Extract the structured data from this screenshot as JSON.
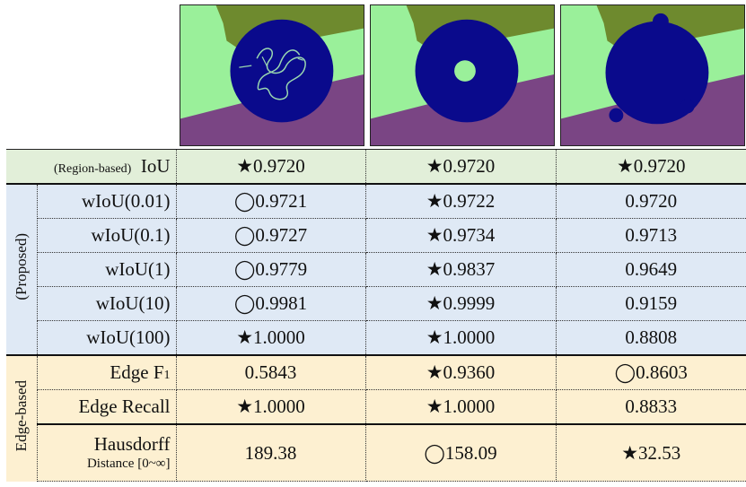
{
  "colors": {
    "region_bg": "#e2efd9",
    "proposed_bg": "#dfe9f5",
    "edge_bg": "#fdf0d1",
    "circle_blue": "#0a0a8c",
    "light_green": "#9af09a",
    "olive_green": "#6e8a2e",
    "purple": "#7a4584"
  },
  "icons": {
    "best": "star",
    "second": "circle"
  },
  "groups": {
    "region": "(Region-based)",
    "proposed": "(Proposed)",
    "edge": "Edge-based"
  },
  "rows": [
    {
      "metric": "IoU",
      "values": [
        "★0.9720",
        "★0.9720",
        "★0.9720"
      ]
    },
    {
      "metric": "wIoU(0.01)",
      "values": [
        "◯0.9721",
        "★0.9722",
        "0.9720"
      ]
    },
    {
      "metric": "wIoU(0.1)",
      "values": [
        "◯0.9727",
        "★0.9734",
        "0.9713"
      ]
    },
    {
      "metric": "wIoU(1)",
      "values": [
        "◯0.9779",
        "★0.9837",
        "0.9649"
      ]
    },
    {
      "metric": "wIoU(10)",
      "values": [
        "◯0.9981",
        "★0.9999",
        "0.9159"
      ]
    },
    {
      "metric": "wIoU(100)",
      "values": [
        "★1.0000",
        "★1.0000",
        "0.8808"
      ]
    },
    {
      "metric": "Edge F",
      "metric_sub": "1",
      "values": [
        "0.5843",
        "★0.9360",
        "◯0.8603"
      ]
    },
    {
      "metric": "Edge Recall",
      "values": [
        "★1.0000",
        "★1.0000",
        "0.8833"
      ]
    },
    {
      "metric": "Hausdorff",
      "metric_line2": "Distance [0~∞]",
      "values": [
        "189.38",
        "◯158.09",
        "★32.53"
      ]
    }
  ]
}
